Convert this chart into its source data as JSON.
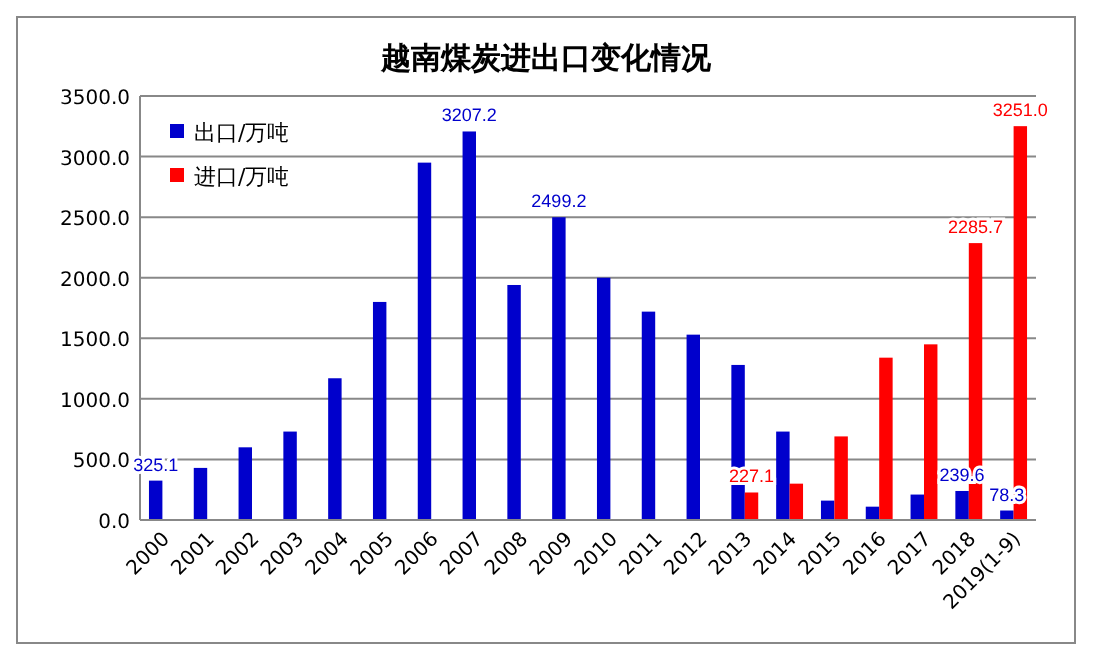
{
  "chart_data": {
    "type": "bar",
    "title": "越南煤炭进出口变化情况",
    "categories": [
      "2000",
      "2001",
      "2002",
      "2003",
      "2004",
      "2005",
      "2006",
      "2007",
      "2008",
      "2009",
      "2010",
      "2011",
      "2012",
      "2013",
      "2014",
      "2015",
      "2016",
      "2017",
      "2018",
      "2019(1-9)"
    ],
    "series": [
      {
        "name": "出口/万吨",
        "color": "#0000cc",
        "values": [
          325.1,
          430,
          600,
          730,
          1170,
          1800,
          2950,
          3207.2,
          1940,
          2499.2,
          2000,
          1720,
          1530,
          1280,
          730,
          160,
          110,
          210,
          239.6,
          78.3
        ],
        "value_labels": [
          "325.1",
          null,
          null,
          null,
          null,
          null,
          null,
          "3207.2",
          null,
          "2499.2",
          null,
          null,
          null,
          null,
          null,
          null,
          null,
          null,
          "239.6",
          "78.3"
        ]
      },
      {
        "name": "进口/万吨",
        "color": "#ff0000",
        "values": [
          null,
          null,
          null,
          null,
          null,
          null,
          null,
          null,
          null,
          null,
          null,
          null,
          null,
          227.1,
          300,
          690,
          1340,
          1450,
          2285.7,
          3251.0
        ],
        "value_labels": [
          null,
          null,
          null,
          null,
          null,
          null,
          null,
          null,
          null,
          null,
          null,
          null,
          null,
          "227.1",
          null,
          null,
          null,
          null,
          "2285.7",
          "3251.0"
        ]
      }
    ],
    "ylim": [
      0,
      3500
    ],
    "yticks": [
      {
        "value": 0,
        "label": "0.0"
      },
      {
        "value": 500,
        "label": "500.0"
      },
      {
        "value": 1000,
        "label": "1000.0"
      },
      {
        "value": 1500,
        "label": "1500.0"
      },
      {
        "value": 2000,
        "label": "2000.0"
      },
      {
        "value": 2500,
        "label": "2500.0"
      },
      {
        "value": 3000,
        "label": "3000.0"
      },
      {
        "value": 3500,
        "label": "3500.0"
      }
    ],
    "grid": "y",
    "legend": "top left"
  }
}
